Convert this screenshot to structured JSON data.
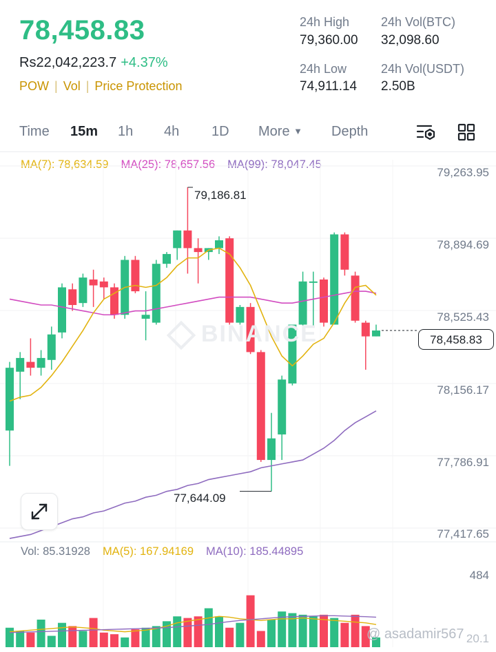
{
  "header": {
    "price": "78,458.83",
    "fiat_price": "Rs22,042,223.7",
    "change": "+4.37%",
    "tags": [
      "POW",
      "Vol",
      "Price Protection"
    ],
    "stats": [
      {
        "label": "24h High",
        "value": "79,360.00"
      },
      {
        "label": "24h Vol(BTC)",
        "value": "32,098.60"
      },
      {
        "label": "24h Low",
        "value": "74,911.14"
      },
      {
        "label": "24h Vol(USDT)",
        "value": "2.50B"
      }
    ]
  },
  "tabs": {
    "time": "Time",
    "m15": "15m",
    "h1": "1h",
    "h4": "4h",
    "d1": "1D",
    "more": "More",
    "depth": "Depth",
    "active": "15m"
  },
  "ma_legend": {
    "ma7": "MA(7): 78,634.59",
    "ma25": "MA(25): 78,657.56",
    "ma99": "MA(99): 78,047.45"
  },
  "vol_legend": {
    "vol": "Vol: 85.31928",
    "ma5": "MA(5): 167.94169",
    "ma10": "MA(10): 185.44895"
  },
  "y_axis": [
    "79,263.95",
    "78,894.69",
    "78,525.43",
    "78,156.17",
    "77,786.91",
    "77,417.65"
  ],
  "vol_axis": {
    "top": "484",
    "bottom": "20.1"
  },
  "current_price_label": "78,458.83",
  "annotations": {
    "high": "79,186.81",
    "low": "77,644.09"
  },
  "watermark": "BINANCE",
  "credit": "@ asadamir567",
  "colors": {
    "up": "#2ebd85",
    "down": "#f6465d",
    "ma7": "#e2b30f",
    "ma25": "#d24bc0",
    "ma99": "#8e6bbf",
    "accent": "#c99400"
  },
  "icons": [
    "indicator-settings-icon",
    "grid-layout-icon",
    "expand-icon",
    "binance-logo-icon"
  ],
  "chart_data": {
    "type": "candlestick",
    "interval": "15m",
    "candles": [
      {
        "o": 77950,
        "h": 78300,
        "l": 77770,
        "c": 78270
      },
      {
        "o": 78250,
        "h": 78350,
        "l": 78110,
        "c": 78320
      },
      {
        "o": 78300,
        "h": 78420,
        "l": 78230,
        "c": 78270
      },
      {
        "o": 78270,
        "h": 78360,
        "l": 78230,
        "c": 78320
      },
      {
        "o": 78310,
        "h": 78480,
        "l": 78260,
        "c": 78440
      },
      {
        "o": 78450,
        "h": 78700,
        "l": 78420,
        "c": 78680
      },
      {
        "o": 78670,
        "h": 78700,
        "l": 78560,
        "c": 78590
      },
      {
        "o": 78600,
        "h": 78750,
        "l": 78580,
        "c": 78730
      },
      {
        "o": 78720,
        "h": 78770,
        "l": 78580,
        "c": 78690
      },
      {
        "o": 78710,
        "h": 78730,
        "l": 78620,
        "c": 78680
      },
      {
        "o": 78680,
        "h": 78700,
        "l": 78520,
        "c": 78540
      },
      {
        "o": 78540,
        "h": 78840,
        "l": 78520,
        "c": 78820
      },
      {
        "o": 78820,
        "h": 78840,
        "l": 78650,
        "c": 78660
      },
      {
        "o": 78520,
        "h": 78660,
        "l": 78410,
        "c": 78540
      },
      {
        "o": 78500,
        "h": 78820,
        "l": 78490,
        "c": 78800
      },
      {
        "o": 78800,
        "h": 78860,
        "l": 78780,
        "c": 78850
      },
      {
        "o": 78880,
        "h": 78970,
        "l": 78820,
        "c": 78970
      },
      {
        "o": 78970,
        "h": 79190,
        "l": 78750,
        "c": 78880
      },
      {
        "o": 78880,
        "h": 78930,
        "l": 78700,
        "c": 78860
      },
      {
        "o": 78860,
        "h": 78880,
        "l": 78820,
        "c": 78880
      },
      {
        "o": 78880,
        "h": 78940,
        "l": 78850,
        "c": 78920
      },
      {
        "o": 78930,
        "h": 78940,
        "l": 78490,
        "c": 78500
      },
      {
        "o": 78500,
        "h": 78590,
        "l": 78490,
        "c": 78580
      },
      {
        "o": 78580,
        "h": 78600,
        "l": 78340,
        "c": 78350
      },
      {
        "o": 78350,
        "h": 78360,
        "l": 77790,
        "c": 77800
      },
      {
        "o": 77800,
        "h": 78040,
        "l": 77640,
        "c": 77910
      },
      {
        "o": 77930,
        "h": 78230,
        "l": 77800,
        "c": 78210
      },
      {
        "o": 78190,
        "h": 78490,
        "l": 78180,
        "c": 78490
      },
      {
        "o": 78490,
        "h": 78760,
        "l": 78440,
        "c": 78710
      },
      {
        "o": 78710,
        "h": 78760,
        "l": 78480,
        "c": 78710
      },
      {
        "o": 78720,
        "h": 78730,
        "l": 78480,
        "c": 78500
      },
      {
        "o": 78490,
        "h": 78960,
        "l": 78490,
        "c": 78950
      },
      {
        "o": 78950,
        "h": 78960,
        "l": 78740,
        "c": 78770
      },
      {
        "o": 78740,
        "h": 78760,
        "l": 78500,
        "c": 78510
      },
      {
        "o": 78500,
        "h": 78510,
        "l": 78260,
        "c": 78430
      },
      {
        "o": 78430,
        "h": 78490,
        "l": 78430,
        "c": 78460
      }
    ],
    "ma7": [
      78100,
      78120,
      78130,
      78170,
      78230,
      78300,
      78380,
      78460,
      78550,
      78620,
      78650,
      78680,
      78690,
      78680,
      78690,
      78730,
      78790,
      78830,
      78830,
      78870,
      78880,
      78850,
      78780,
      78690,
      78560,
      78430,
      78330,
      78280,
      78330,
      78390,
      78420,
      78500,
      78600,
      78680,
      78690,
      78640
    ],
    "ma25": [
      78620,
      78610,
      78600,
      78590,
      78590,
      78580,
      78570,
      78560,
      78550,
      78540,
      78540,
      78550,
      78560,
      78560,
      78570,
      78580,
      78590,
      78600,
      78610,
      78620,
      78630,
      78630,
      78630,
      78630,
      78620,
      78610,
      78600,
      78600,
      78610,
      78620,
      78630,
      78640,
      78650,
      78660,
      78660,
      78650
    ],
    "ma99": [
      77400,
      77410,
      77420,
      77440,
      77460,
      77480,
      77500,
      77510,
      77530,
      77540,
      77560,
      77580,
      77590,
      77610,
      77620,
      77640,
      77650,
      77670,
      77680,
      77700,
      77710,
      77720,
      77730,
      77740,
      77760,
      77770,
      77780,
      77790,
      77800,
      77830,
      77860,
      77900,
      77950,
      77990,
      78020,
      78050
    ],
    "volume": [
      120,
      100,
      90,
      170,
      70,
      150,
      130,
      100,
      180,
      90,
      80,
      60,
      110,
      120,
      130,
      160,
      190,
      180,
      190,
      240,
      190,
      120,
      150,
      320,
      100,
      170,
      220,
      210,
      200,
      190,
      200,
      180,
      150,
      200,
      130,
      60
    ],
    "vol_ma5": [
      95,
      100,
      105,
      110,
      115,
      120,
      125,
      120,
      115,
      105,
      100,
      95,
      100,
      105,
      115,
      130,
      150,
      160,
      170,
      180,
      190,
      185,
      175,
      170,
      165,
      170,
      175,
      175,
      180,
      175,
      170,
      165,
      160,
      155,
      150,
      140
    ],
    "vol_ma10": [
      90,
      92,
      94,
      96,
      98,
      100,
      102,
      104,
      106,
      108,
      110,
      112,
      114,
      116,
      118,
      120,
      125,
      130,
      135,
      140,
      150,
      158,
      165,
      170,
      175,
      180,
      185,
      188,
      190,
      192,
      194,
      194,
      192,
      190,
      188,
      185
    ],
    "ylim": [
      77370,
      79280
    ],
    "y_ticks": [
      "79,263.95",
      "78,894.69",
      "78,525.43",
      "78,156.17",
      "77,786.91",
      "77,417.65"
    ]
  }
}
